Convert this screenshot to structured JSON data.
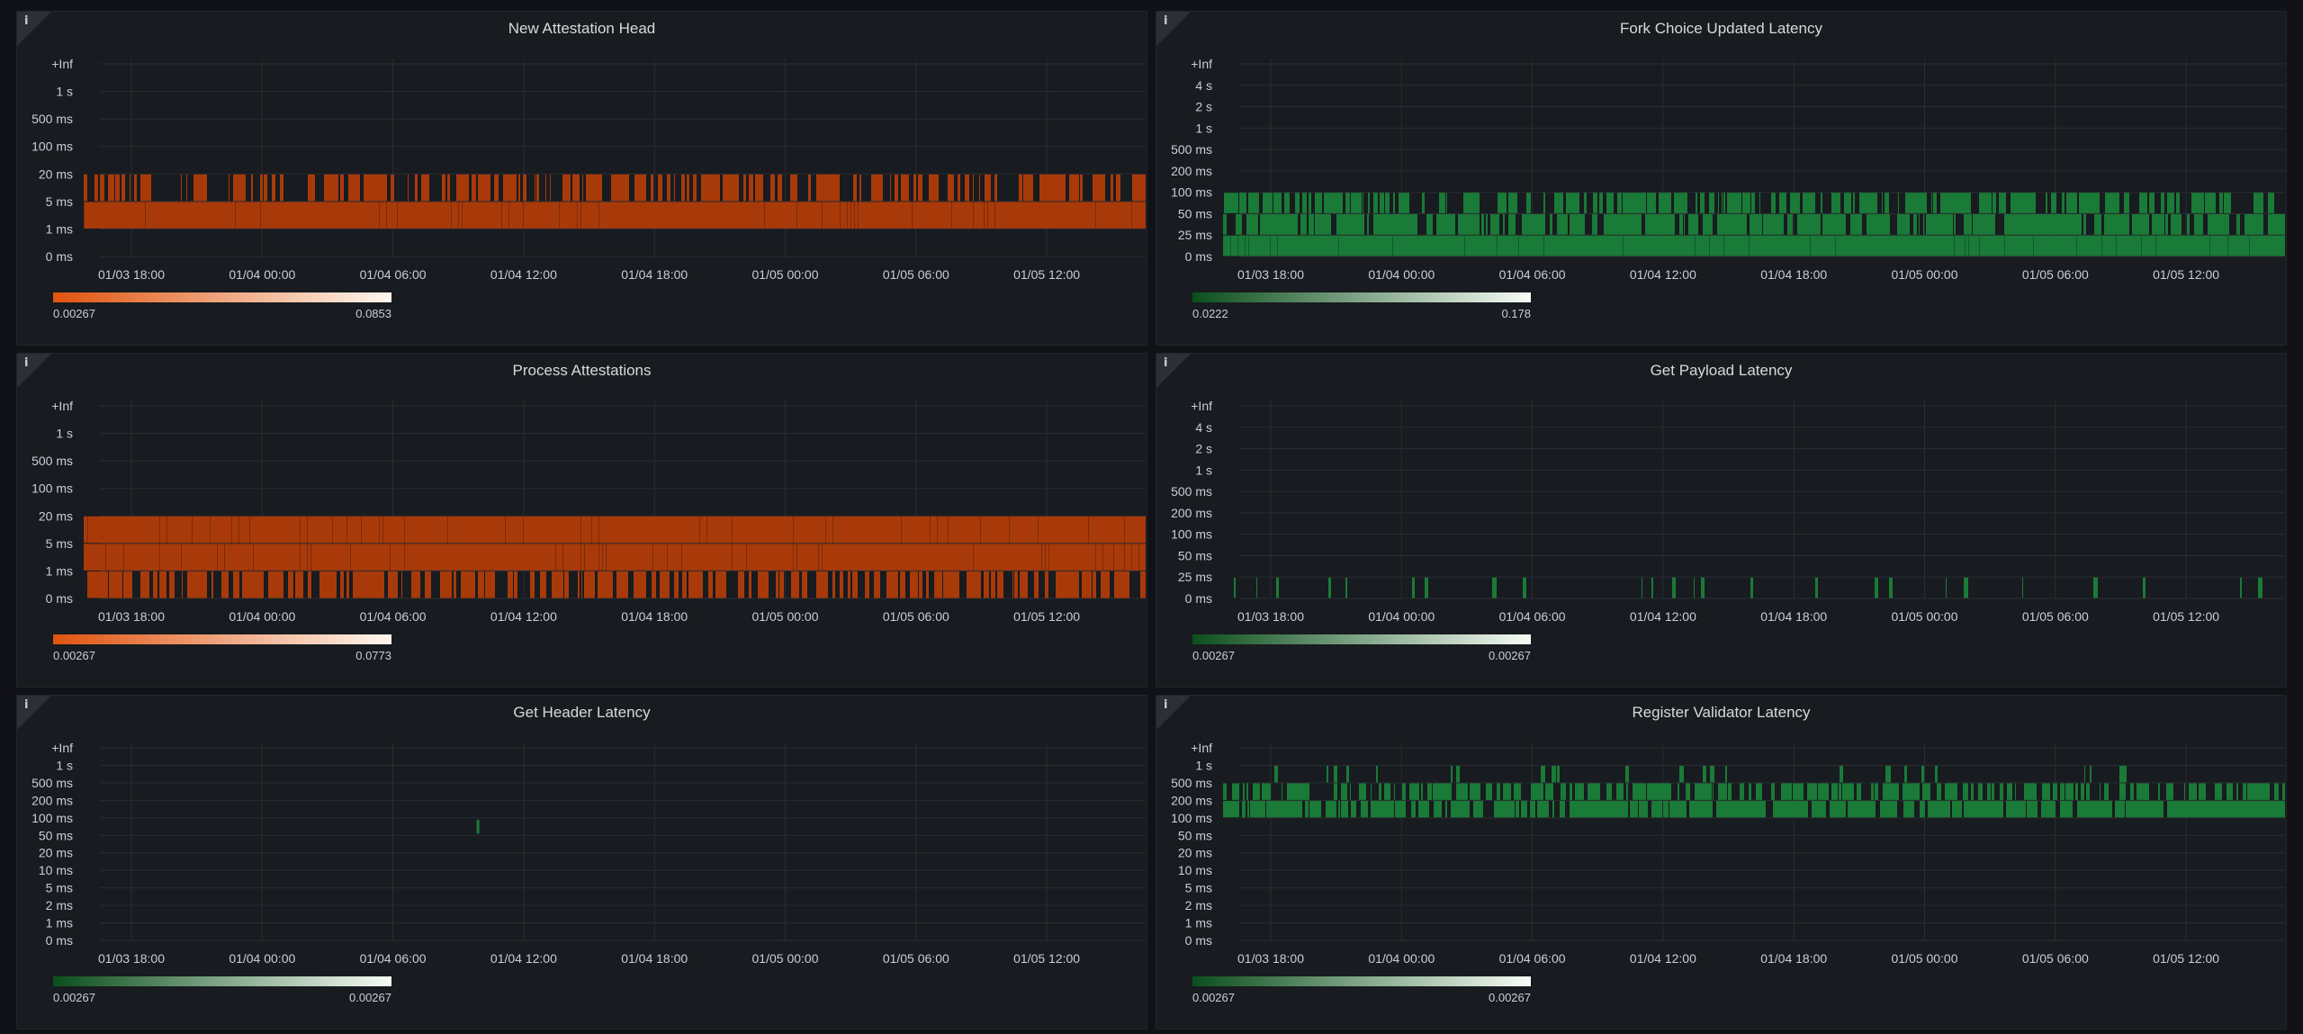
{
  "x_ticks": [
    "01/03 18:00",
    "01/04 00:00",
    "01/04 06:00",
    "01/04 12:00",
    "01/04 18:00",
    "01/05 00:00",
    "01/05 06:00",
    "01/05 12:00"
  ],
  "info_icon": "info-icon",
  "colors": {
    "background": "#111217",
    "panel": "#181b1f",
    "orange_low": "#e0530f",
    "orange_high": "#fff7ef",
    "green_low": "#0b4f1c",
    "green_high": "#f7fcf5",
    "orange_cell": "#a83a0a",
    "green_cell": "#1a7a37"
  },
  "panels": [
    {
      "title": "New Attestation Head",
      "y_ticks": [
        "0 ms",
        "1 ms",
        "5 ms",
        "20 ms",
        "100 ms",
        "500 ms",
        "1 s",
        "+Inf"
      ],
      "legend_min": "0.00267",
      "legend_max": "0.0853",
      "scheme": "orange",
      "chart_data": {
        "type": "heatmap",
        "bands": [
          {
            "bucket": "5 ms",
            "density": "full"
          },
          {
            "bucket": "20 ms",
            "density": "partial"
          }
        ]
      }
    },
    {
      "title": "Fork Choice Updated Latency",
      "y_ticks": [
        "0 ms",
        "25 ms",
        "50 ms",
        "100 ms",
        "200 ms",
        "500 ms",
        "1 s",
        "2 s",
        "4 s",
        "+Inf"
      ],
      "legend_min": "0.0222",
      "legend_max": "0.178",
      "scheme": "green",
      "chart_data": {
        "type": "heatmap",
        "bands": [
          {
            "bucket": "25 ms",
            "density": "full"
          },
          {
            "bucket": "50 ms",
            "density": "dense"
          },
          {
            "bucket": "100 ms",
            "density": "partial"
          }
        ]
      }
    },
    {
      "title": "Process Attestations",
      "y_ticks": [
        "0 ms",
        "1 ms",
        "5 ms",
        "20 ms",
        "100 ms",
        "500 ms",
        "1 s",
        "+Inf"
      ],
      "legend_min": "0.00267",
      "legend_max": "0.0773",
      "scheme": "orange",
      "chart_data": {
        "type": "heatmap",
        "bands": [
          {
            "bucket": "1 ms",
            "density": "partial"
          },
          {
            "bucket": "5 ms",
            "density": "full"
          },
          {
            "bucket": "20 ms",
            "density": "full"
          }
        ]
      }
    },
    {
      "title": "Get Payload Latency",
      "y_ticks": [
        "0 ms",
        "25 ms",
        "50 ms",
        "100 ms",
        "200 ms",
        "500 ms",
        "1 s",
        "2 s",
        "4 s",
        "+Inf"
      ],
      "legend_min": "0.00267",
      "legend_max": "0.00267",
      "scheme": "green",
      "chart_data": {
        "type": "heatmap",
        "bands": [
          {
            "bucket": "25 ms",
            "density": "sparse"
          }
        ]
      }
    },
    {
      "title": "Get Header Latency",
      "y_ticks": [
        "0 ms",
        "1 ms",
        "2 ms",
        "5 ms",
        "10 ms",
        "20 ms",
        "50 ms",
        "100 ms",
        "200 ms",
        "500 ms",
        "1 s",
        "+Inf"
      ],
      "legend_min": "0.00267",
      "legend_max": "0.00267",
      "scheme": "green",
      "chart_data": {
        "type": "heatmap",
        "bands": [
          {
            "bucket": "100 ms",
            "density": "single"
          }
        ]
      }
    },
    {
      "title": "Register Validator Latency",
      "y_ticks": [
        "0 ms",
        "1 ms",
        "2 ms",
        "5 ms",
        "10 ms",
        "20 ms",
        "50 ms",
        "100 ms",
        "200 ms",
        "500 ms",
        "1 s",
        "+Inf"
      ],
      "legend_min": "0.00267",
      "legend_max": "0.00267",
      "scheme": "green",
      "chart_data": {
        "type": "heatmap",
        "bands": [
          {
            "bucket": "200 ms",
            "density": "dense"
          },
          {
            "bucket": "500 ms",
            "density": "partial"
          },
          {
            "bucket": "1 s",
            "density": "sparse"
          }
        ]
      }
    }
  ]
}
